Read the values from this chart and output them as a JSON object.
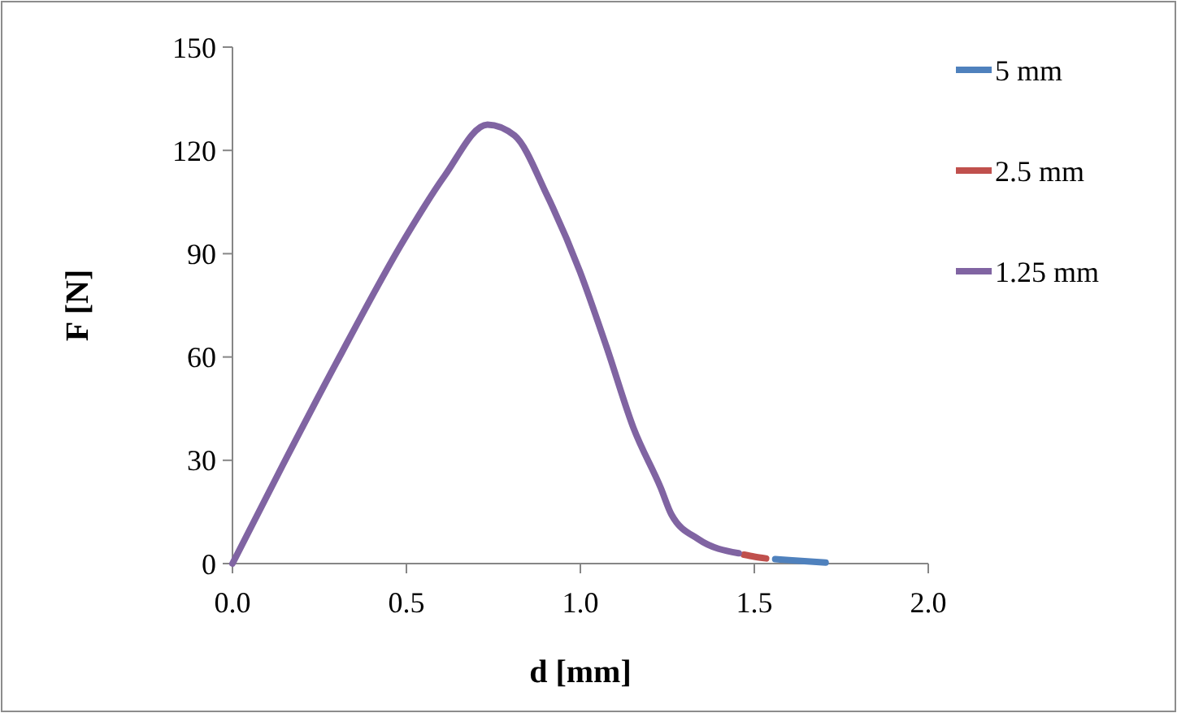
{
  "chart_data": {
    "type": "line",
    "xlabel": "d [mm]",
    "ylabel": "F [N]",
    "xlim": [
      0,
      2
    ],
    "xticks": [
      {
        "value": 0,
        "label": "0.0"
      },
      {
        "value": 0.5,
        "label": "0.5"
      },
      {
        "value": 1,
        "label": "1.0"
      },
      {
        "value": 1.5,
        "label": "1.5"
      },
      {
        "value": 2,
        "label": "2.0"
      }
    ],
    "ylim": [
      0,
      150
    ],
    "yticks": [
      0,
      30,
      60,
      90,
      120,
      150
    ],
    "grid": false,
    "legend": "right",
    "line_style": "solid",
    "marker": "none",
    "series": [
      {
        "name": "5 mm",
        "color": "#4f81bd",
        "x": [
          1.56,
          1.6,
          1.705
        ],
        "values": [
          1.3,
          1,
          0.3
        ]
      },
      {
        "name": "2.5 mm",
        "color": "#c0504d",
        "x": [
          1.47,
          1.5,
          1.534
        ],
        "values": [
          2.6,
          2,
          1.5
        ]
      },
      {
        "name": "1.25 mm",
        "color": "#8064a2",
        "x": [
          0,
          0.143,
          0.298,
          0.497,
          0.609,
          0.733,
          0.811,
          0.904,
          0.998,
          1.075,
          1.153,
          1.231,
          1.262,
          1.339,
          1.455
        ],
        "values": [
          0,
          28.3,
          58.2,
          94.7,
          112.5,
          127.5,
          124.3,
          107,
          85,
          63,
          39.3,
          22,
          14.2,
          7.1,
          3
        ]
      }
    ]
  }
}
